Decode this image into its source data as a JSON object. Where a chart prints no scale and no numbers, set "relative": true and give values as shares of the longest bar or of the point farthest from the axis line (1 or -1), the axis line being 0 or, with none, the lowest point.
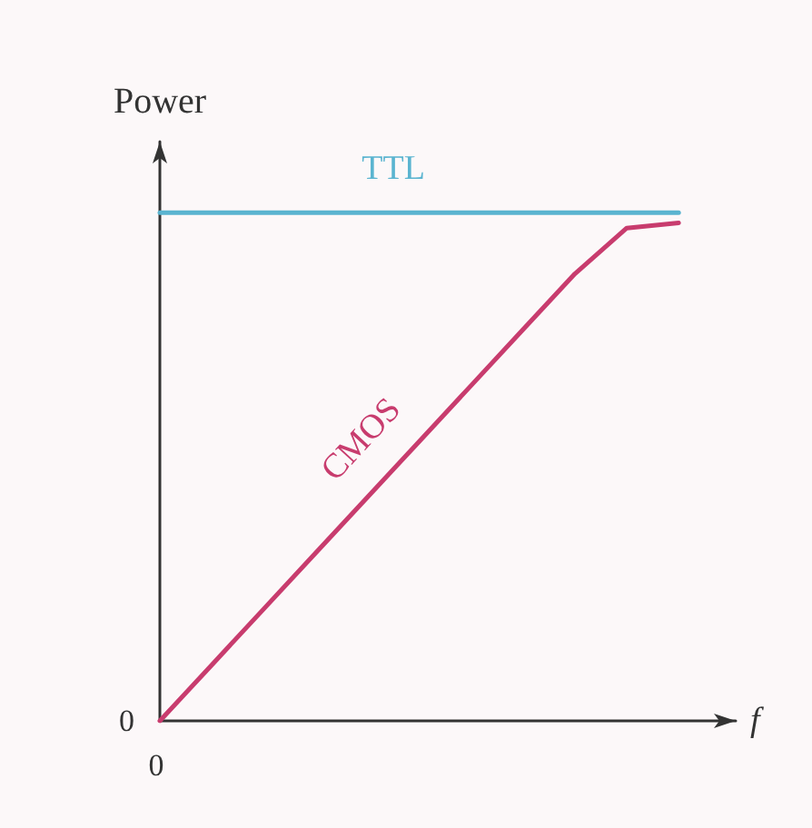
{
  "chart_data": {
    "type": "line",
    "xlabel": "f",
    "ylabel": "Power",
    "relative": true,
    "marker": "none",
    "categories": [
      null,
      null,
      null,
      null,
      null,
      null,
      null,
      null,
      null,
      null,
      null
    ],
    "series": [
      {
        "name": "TTL",
        "color": "#5ab4d0",
        "values": [
          1,
          1,
          1,
          1,
          1,
          1,
          1,
          1,
          1,
          1,
          1
        ]
      },
      {
        "name": "CMOS",
        "color": "#c83c6e",
        "values": [
          0,
          0.11,
          0.22,
          0.33,
          0.44,
          0.55,
          0.66,
          0.77,
          0.88,
          0.97,
          0.98
        ]
      }
    ],
    "annotations": [
      "0",
      "0"
    ]
  }
}
